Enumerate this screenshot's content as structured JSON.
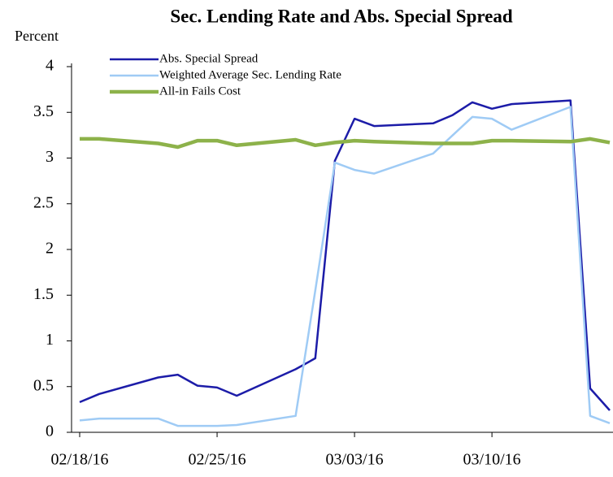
{
  "chart_data": {
    "type": "line",
    "title": "Sec. Lending  Rate and Abs. Special Spread",
    "y_label": "Percent",
    "x": [
      "02/18/16",
      "02/19/16",
      "02/22/16",
      "02/23/16",
      "02/24/16",
      "02/25/16",
      "02/26/16",
      "02/29/16",
      "03/01/16",
      "03/02/16",
      "03/03/16",
      "03/04/16",
      "03/07/16",
      "03/08/16",
      "03/09/16",
      "03/10/16",
      "03/11/16",
      "03/14/16",
      "03/15/16",
      "03/16/16"
    ],
    "series": [
      {
        "name": "Abs. Special Spread",
        "color": "#1c1ca8",
        "width": 2.5,
        "values": [
          0.33,
          0.42,
          0.6,
          0.63,
          0.51,
          0.49,
          0.4,
          0.69,
          0.81,
          2.97,
          3.43,
          3.35,
          3.38,
          3.47,
          3.61,
          3.54,
          3.59,
          3.63,
          0.48,
          0.24
        ]
      },
      {
        "name": "Weighted Average Sec. Lending Rate",
        "color": "#9fcbf5",
        "width": 2.5,
        "values": [
          0.13,
          0.15,
          0.15,
          0.07,
          0.07,
          0.07,
          0.08,
          0.18,
          1.55,
          2.95,
          2.87,
          2.83,
          3.05,
          3.25,
          3.45,
          3.43,
          3.31,
          3.56,
          0.18,
          0.1
        ]
      },
      {
        "name": "All-in Fails Cost",
        "color": "#8db24a",
        "width": 4.5,
        "values": [
          3.21,
          3.21,
          3.16,
          3.12,
          3.19,
          3.19,
          3.14,
          3.2,
          3.14,
          3.17,
          3.19,
          3.18,
          3.16,
          3.16,
          3.16,
          3.19,
          3.19,
          3.18,
          3.21,
          3.17
        ]
      }
    ],
    "xlim": [
      "02/18/16",
      "03/16/16"
    ],
    "xticks": [
      "02/18/16",
      "02/25/16",
      "03/03/16",
      "03/10/16"
    ],
    "ylim": [
      0,
      4
    ],
    "yticks": [
      0,
      0.5,
      1,
      1.5,
      2,
      2.5,
      3,
      3.5,
      4
    ],
    "grid": false,
    "legend": "upper left"
  }
}
